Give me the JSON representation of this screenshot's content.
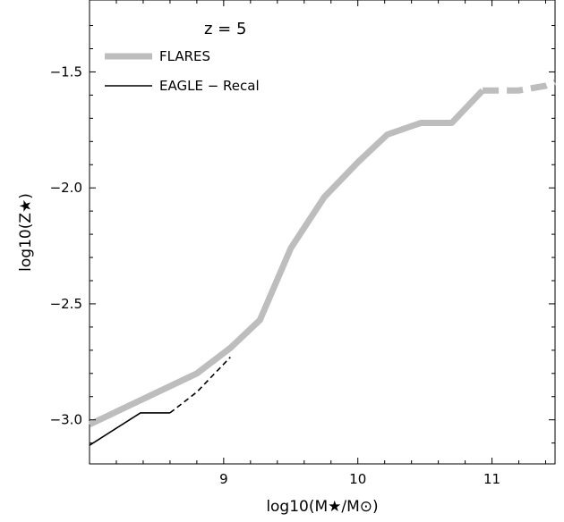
{
  "chart_data": {
    "type": "line",
    "annotation": "z = 5",
    "xlabel": "log10(M★/M⊙)",
    "ylabel": "log10(Z★)",
    "xlim": [
      8.0,
      11.47
    ],
    "ylim": [
      -3.19,
      -1.19
    ],
    "x_ticks": [
      9,
      10,
      11
    ],
    "x_tick_labels": [
      "9",
      "10",
      "11"
    ],
    "y_ticks": [
      -3.0,
      -2.5,
      -2.0,
      -1.5
    ],
    "y_tick_labels": [
      "−3.0",
      "−2.5",
      "−2.0",
      "−1.5"
    ],
    "grid": false,
    "legend_position": "top-left",
    "series": [
      {
        "name": "FLARES",
        "color": "#bdbdbd",
        "style": "thick",
        "x": [
          8.0,
          8.8,
          9.05,
          9.27,
          9.5,
          9.75,
          10.0,
          10.22,
          10.47,
          10.7,
          10.93
        ],
        "y": [
          -3.02,
          -2.8,
          -2.69,
          -2.57,
          -2.26,
          -2.04,
          -1.89,
          -1.77,
          -1.72,
          -1.72,
          -1.58
        ],
        "dashed_x": [
          10.93,
          11.2,
          11.4,
          11.47
        ],
        "dashed_y": [
          -1.58,
          -1.58,
          -1.56,
          -1.545
        ]
      },
      {
        "name": "EAGLE − Recal",
        "color": "#000000",
        "style": "thin",
        "x": [
          8.0,
          8.38,
          8.6
        ],
        "y": [
          -3.11,
          -2.97,
          -2.97
        ],
        "dashed_x": [
          8.6,
          8.8,
          9.05
        ],
        "dashed_y": [
          -2.97,
          -2.88,
          -2.73
        ]
      }
    ]
  }
}
